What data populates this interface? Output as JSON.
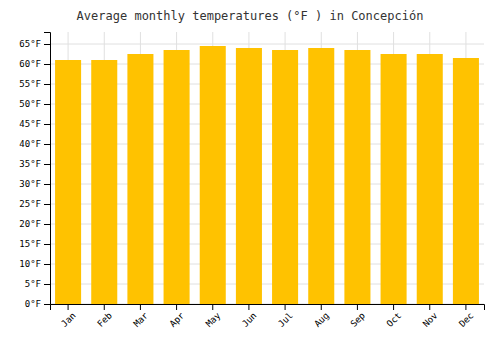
{
  "chart_data": {
    "type": "bar",
    "title": "Average monthly temperatures (°F ) in Concepción",
    "categories": [
      "Jan",
      "Feb",
      "Mar",
      "Apr",
      "May",
      "Jun",
      "Jul",
      "Aug",
      "Sep",
      "Oct",
      "Nov",
      "Dec"
    ],
    "values": [
      61.0,
      61.0,
      62.5,
      63.5,
      64.5,
      64.0,
      63.5,
      64.0,
      63.5,
      62.5,
      62.5,
      61.5
    ],
    "color": "#FFC200",
    "ylim": [
      0,
      68
    ],
    "yticks": [
      {
        "value": 0,
        "label": "0°F"
      },
      {
        "value": 5,
        "label": "5°F"
      },
      {
        "value": 10,
        "label": "10°F"
      },
      {
        "value": 15,
        "label": "15°F"
      },
      {
        "value": 20,
        "label": "20°F"
      },
      {
        "value": 25,
        "label": "25°F"
      },
      {
        "value": 30,
        "label": "30°F"
      },
      {
        "value": 35,
        "label": "35°F"
      },
      {
        "value": 40,
        "label": "40°F"
      },
      {
        "value": 45,
        "label": "45°F"
      },
      {
        "value": 50,
        "label": "50°F"
      },
      {
        "value": 55,
        "label": "55°F"
      },
      {
        "value": 60,
        "label": "60°F"
      },
      {
        "value": 65,
        "label": "65°F"
      }
    ],
    "grid": true
  }
}
